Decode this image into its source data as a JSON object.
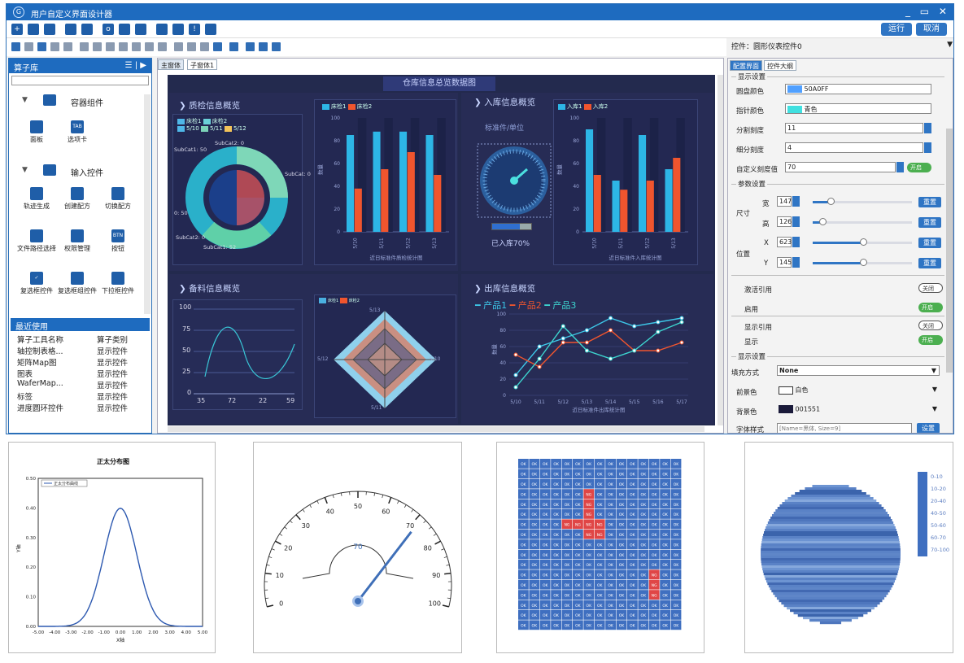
{
  "app": {
    "title": "用户自定义界面设计器",
    "run_label": "运行",
    "cancel_label": "取消",
    "control_label": "控件：圆形仪表控件0"
  },
  "library": {
    "title": "算子库",
    "sections": [
      {
        "label": "容器组件"
      },
      {
        "label": "输入控件"
      }
    ],
    "containers": [
      {
        "label": "面板"
      },
      {
        "label": "选项卡",
        "icon": "TAB"
      }
    ],
    "inputs": [
      {
        "label": "轨迹生成"
      },
      {
        "label": "创建配方"
      },
      {
        "label": "切换配方"
      },
      {
        "label": "文件路径选择"
      },
      {
        "label": "权限管理"
      },
      {
        "label": "按钮",
        "icon": "BTN"
      },
      {
        "label": "复选框控件"
      },
      {
        "label": "复选框组控件"
      },
      {
        "label": "下拉框控件"
      }
    ],
    "recent_title": "最近使用",
    "recent_headers": [
      "算子工具名称",
      "算子类别"
    ],
    "recent": [
      {
        "name": "轴控制表格...",
        "cat": "显示控件"
      },
      {
        "name": "矩阵Map图",
        "cat": "显示控件"
      },
      {
        "name": "图表",
        "cat": "显示控件"
      },
      {
        "name": "WaferMap...",
        "cat": "显示控件"
      },
      {
        "name": "标签",
        "cat": "显示控件"
      },
      {
        "name": "进度圆环控件",
        "cat": "显示控件"
      }
    ]
  },
  "center": {
    "tabs": [
      "主窗体",
      "子窗体1"
    ],
    "dashboard": {
      "title": "仓库信息总览数据图",
      "panels": [
        {
          "title": "质检信息概览"
        },
        {
          "title": "入库信息概览"
        },
        {
          "title": "备料信息概览"
        },
        {
          "title": "出库信息概览"
        }
      ],
      "qc_legend": [
        "床检1",
        "床检2",
        "5/10",
        "5/11",
        "5/12"
      ],
      "pie_labels": [
        "SubCat1: 50",
        "SubCat2: 0",
        "SubCat: 0",
        "SubCat2: 0",
        "SubCat1: 52",
        "0: 50"
      ],
      "qc_bar_legend": [
        "床检1",
        "床检2"
      ],
      "qc_bar_xlabel": "近日标准件质检统计图",
      "qc_bar_ylabel": "数量",
      "inbound_unit": "标准件/单位",
      "inbound_status": "已入库70%",
      "in_bar_legend": [
        "入库1",
        "入库2"
      ],
      "in_bar_xlabel": "近日标准件入库统计图",
      "in_bar_ylabel": "数量",
      "prep_x": [
        "35",
        "72",
        "22",
        "59"
      ],
      "prep_y": [
        "100",
        "75",
        "50",
        "25",
        "0"
      ],
      "radar_labels": [
        "5/13",
        "5/10",
        "5/11",
        "5/12"
      ],
      "radar_legend": [
        "床检1",
        "床检2"
      ],
      "out_legend": [
        "产品1",
        "产品2",
        "产品3"
      ],
      "out_xlabel": "近日标准件出库统计图",
      "out_ylabel": "数量",
      "out_x": [
        "5/10",
        "5/11",
        "5/12",
        "5/13",
        "5/14",
        "5/15",
        "5/16",
        "5/17"
      ],
      "bar_x": [
        "5/10",
        "5/11",
        "5/12",
        "5/13"
      ],
      "bar_y": [
        "100",
        "80",
        "60",
        "40",
        "20",
        "0"
      ]
    }
  },
  "props": {
    "tabs": [
      "配置界面",
      "控件大纲"
    ],
    "display_title": "显示设置",
    "dial_color_label": "圆盘颜色",
    "dial_color": "50A0FF",
    "needle_color_label": "指针颜色",
    "needle_color": "青色",
    "major_tick_label": "分割刻度",
    "major_tick": "11",
    "minor_tick_label": "细分刻度",
    "minor_tick": "4",
    "custom_tick_label": "自定义刻度值",
    "custom_tick": "70",
    "on": "开启",
    "off": "关闭",
    "param_title": "参数设置",
    "size_label": "尺寸",
    "pos_label": "位置",
    "w_label": "宽",
    "w": "147",
    "h_label": "高",
    "h": "126",
    "x_label": "X",
    "x": "623",
    "y_label": "Y",
    "y": "145",
    "reset": "重置",
    "activate_ref": "激活引用",
    "enable": "启用",
    "display_ref": "显示引用",
    "display": "显示",
    "display2_title": "显示设置",
    "fill_label": "填充方式",
    "fill": "None",
    "fg_label": "前景色",
    "fg": "白色",
    "bg_label": "背景色",
    "bg": "001551",
    "font_label": "字体样式",
    "font": "[Name=黑体, Size=9]",
    "set": "设置"
  },
  "bottom": {
    "normal": {
      "title": "正太分布图",
      "legend": "正太分布曲线",
      "ylabel": "Y轴",
      "xlabel": "X轴",
      "y": [
        "0.50",
        "0.40",
        "0.30",
        "0.20",
        "0.10",
        "0.00"
      ],
      "x": [
        "-5.00",
        "-4.00",
        "-3.00",
        "-2.00",
        "-1.00",
        "0.00",
        "1.00",
        "2.00",
        "3.00",
        "4.00",
        "5.00"
      ]
    },
    "gauge": {
      "value": "70",
      "ticks": [
        "0",
        "10",
        "20",
        "30",
        "40",
        "50",
        "60",
        "70",
        "80",
        "90",
        "100"
      ]
    },
    "grid": {
      "ok": "OK",
      "ng": "NG"
    },
    "wafer": {
      "legend": [
        "0-10",
        "10-20",
        "20-40",
        "40-50",
        "50-60",
        "60-70",
        "70-100"
      ]
    }
  },
  "chart_data": [
    {
      "type": "bar",
      "title": "",
      "xlabel": "近日标准件质检统计图",
      "ylabel": "数量",
      "categories": [
        "5/10",
        "5/11",
        "5/12",
        "5/13"
      ],
      "series": [
        {
          "name": "床检1",
          "values": [
            85,
            88,
            88,
            85
          ]
        },
        {
          "name": "床检2",
          "values": [
            38,
            55,
            70,
            50
          ]
        }
      ],
      "ylim": [
        0,
        100
      ]
    },
    {
      "type": "bar",
      "title": "",
      "xlabel": "近日标准件入库统计图",
      "ylabel": "数量",
      "categories": [
        "5/10",
        "5/11",
        "5/12",
        "5/13"
      ],
      "series": [
        {
          "name": "入库1",
          "values": [
            90,
            45,
            85,
            55
          ]
        },
        {
          "name": "入库2",
          "values": [
            50,
            37,
            45,
            65
          ]
        }
      ],
      "ylim": [
        0,
        100
      ]
    },
    {
      "type": "line",
      "title": "",
      "xlabel": "近日标准件出库统计图",
      "ylabel": "数量",
      "categories": [
        "5/10",
        "5/11",
        "5/12",
        "5/13",
        "5/14",
        "5/15",
        "5/16",
        "5/17"
      ],
      "series": [
        {
          "name": "产品1",
          "values": [
            25,
            60,
            70,
            80,
            95,
            85,
            90,
            95
          ]
        },
        {
          "name": "产品2",
          "values": [
            50,
            35,
            65,
            65,
            80,
            55,
            55,
            65
          ]
        },
        {
          "name": "产品3",
          "values": [
            10,
            45,
            85,
            55,
            45,
            55,
            78,
            90
          ]
        }
      ],
      "ylim": [
        0,
        100
      ]
    },
    {
      "type": "line",
      "title": "正太分布图",
      "xlabel": "X轴",
      "ylabel": "Y轴",
      "x": [
        -5,
        -4,
        -3,
        -2,
        -1,
        -0.5,
        0,
        0.5,
        1,
        2,
        3,
        4,
        5
      ],
      "series": [
        {
          "name": "正太分布曲线",
          "values": [
            0,
            0.0001,
            0.0044,
            0.054,
            0.242,
            0.352,
            0.399,
            0.352,
            0.242,
            0.054,
            0.0044,
            0.0001,
            0
          ]
        }
      ],
      "ylim": [
        0,
        0.5
      ],
      "xlim": [
        -5,
        5
      ]
    }
  ]
}
